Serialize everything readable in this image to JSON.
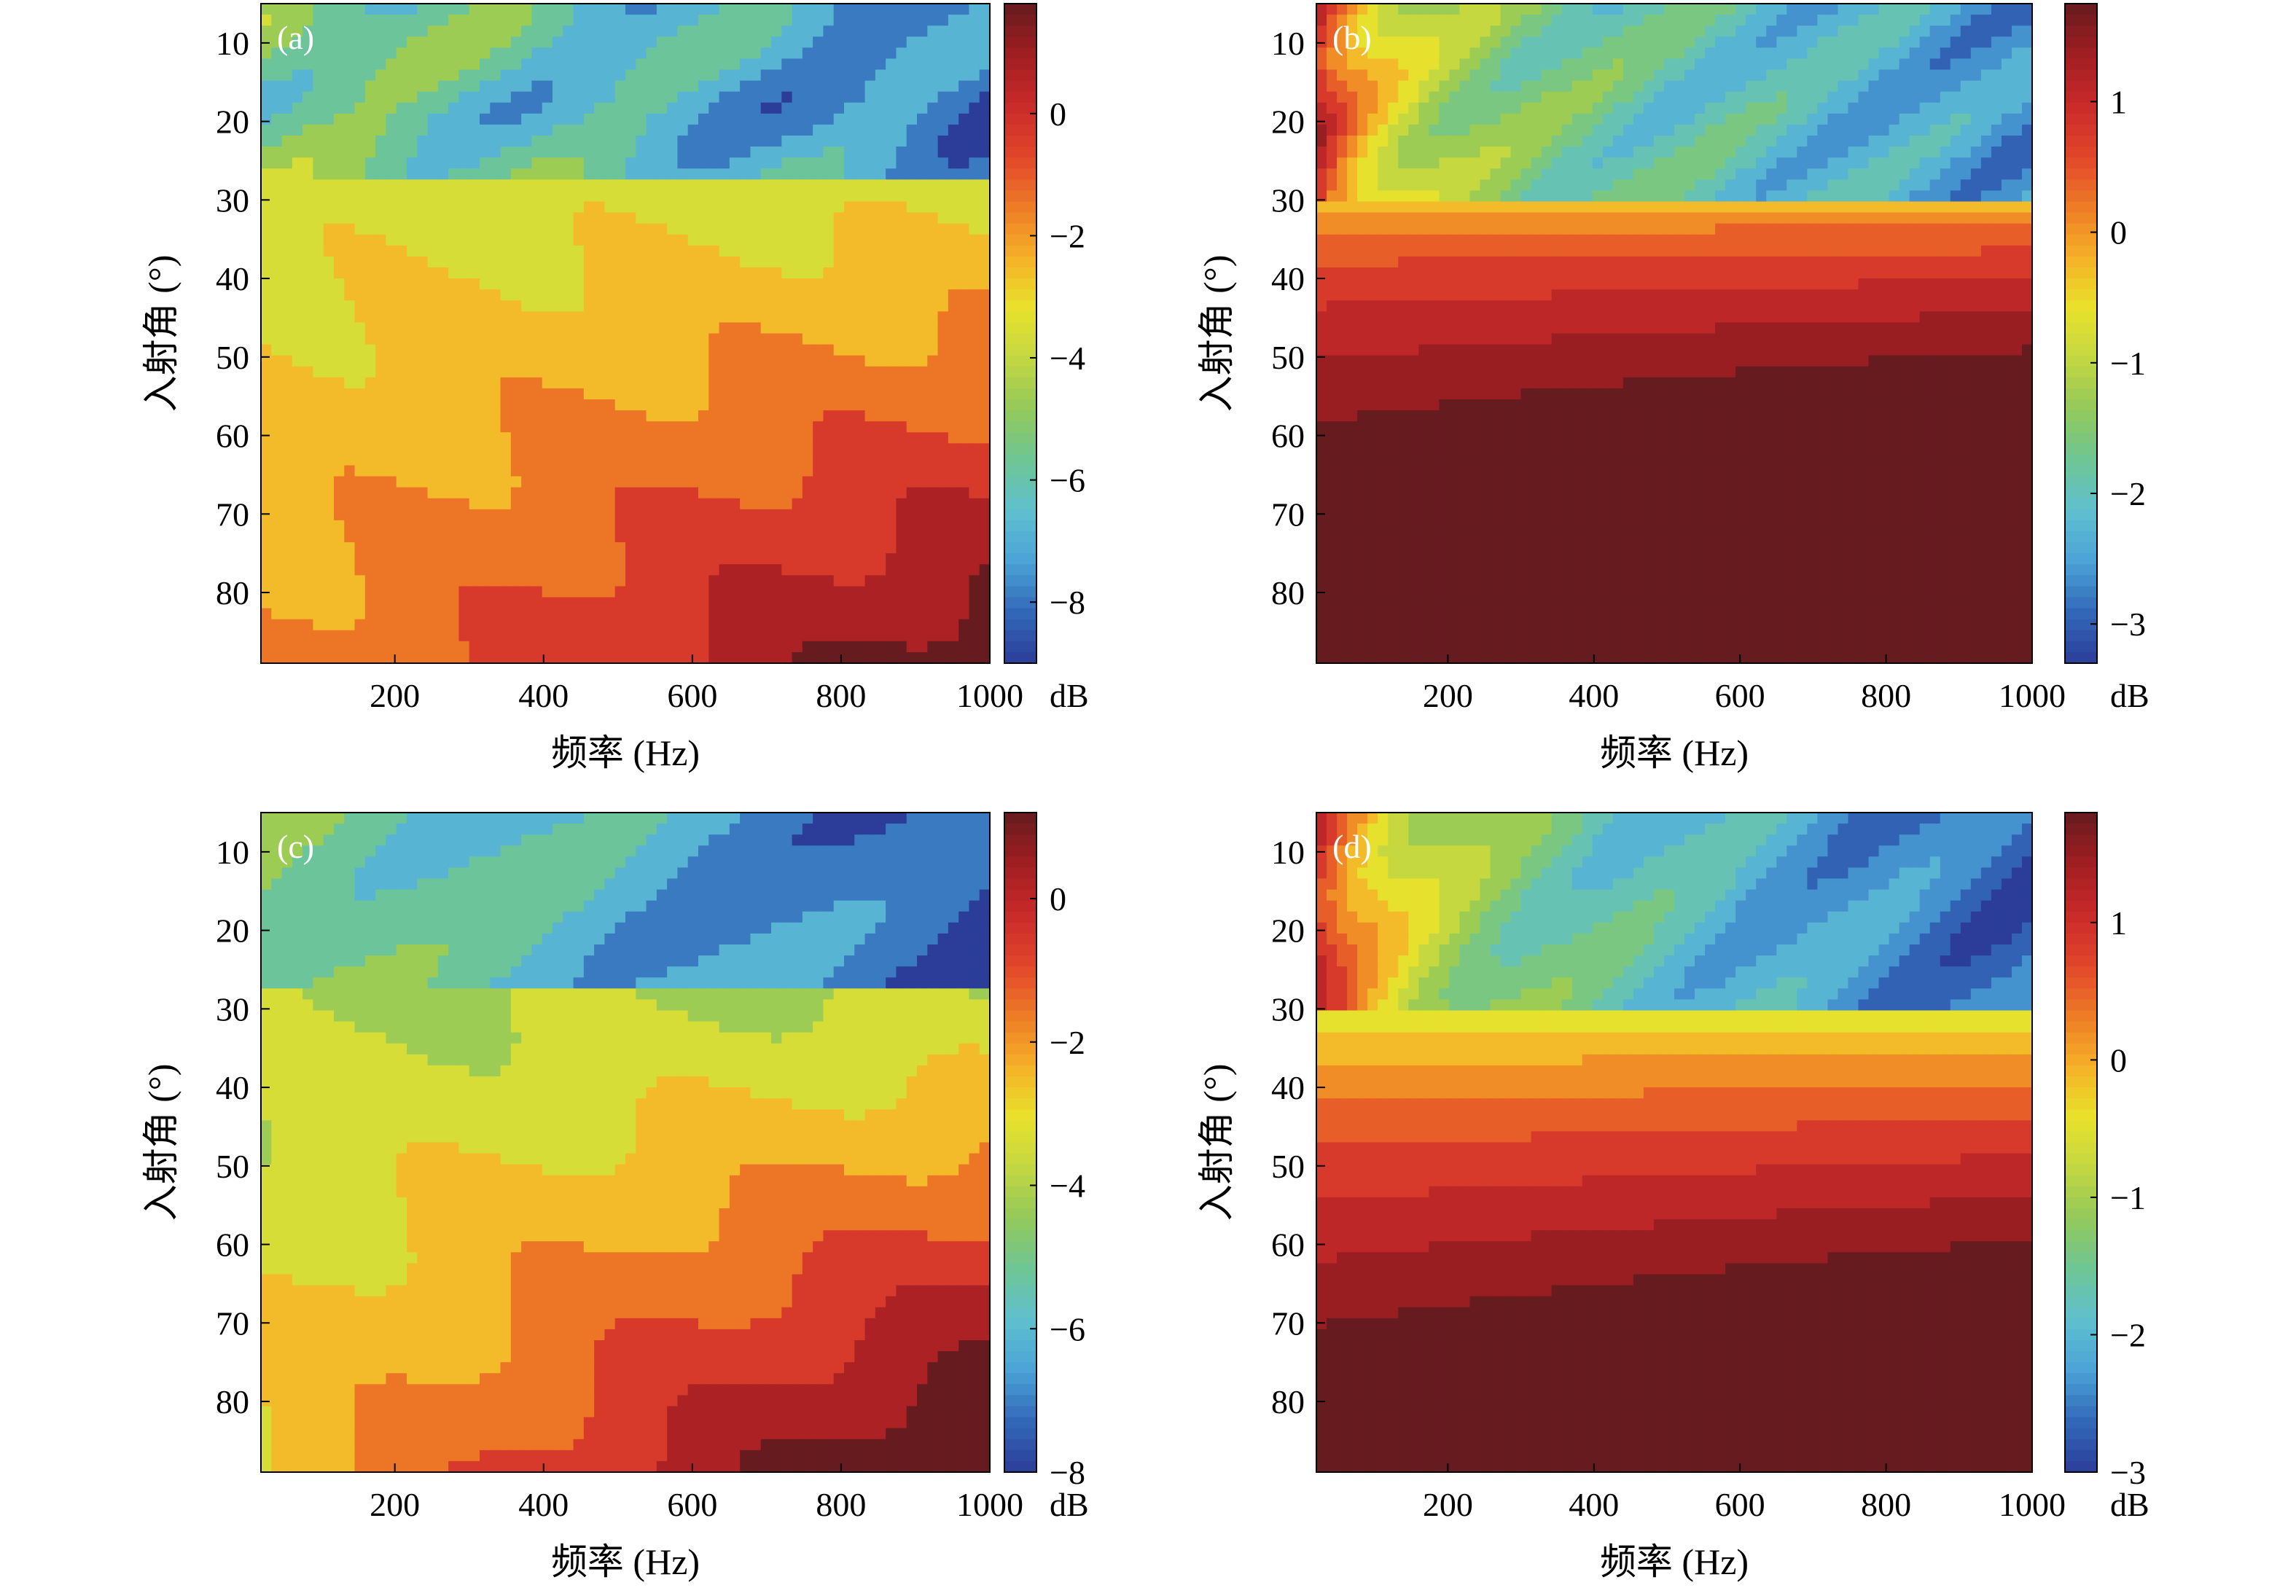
{
  "chart_data": [
    {
      "type": "heatmap",
      "tag": "(a)",
      "xlabel": "频率 (Hz)",
      "ylabel": "入射角 (°)",
      "xlim": [
        20,
        1000
      ],
      "ylim": [
        5,
        89
      ],
      "y_inverted": true,
      "xticks": [
        200,
        400,
        600,
        800,
        1000
      ],
      "yticks": [
        10,
        20,
        30,
        40,
        50,
        60,
        70,
        80
      ],
      "colorbar": {
        "unit": "dB",
        "range": [
          -9,
          1.8
        ],
        "ticks": [
          0,
          -2,
          -4,
          -6,
          -8
        ],
        "labels": [
          "0",
          "−2",
          "−4",
          "−6",
          "−8"
        ]
      },
      "contours": "dense"
    },
    {
      "type": "heatmap",
      "tag": "(b)",
      "xlabel": "频率 (Hz)",
      "ylabel": "入射角 (°)",
      "xlim": [
        20,
        1000
      ],
      "ylim": [
        5,
        89
      ],
      "y_inverted": true,
      "xticks": [
        200,
        400,
        600,
        800,
        1000
      ],
      "yticks": [
        10,
        20,
        30,
        40,
        50,
        60,
        70,
        80
      ],
      "colorbar": {
        "unit": "dB",
        "range": [
          -3.3,
          1.75
        ],
        "ticks": [
          1,
          0,
          -1,
          -2,
          -3
        ],
        "labels": [
          "1",
          "0",
          "−1",
          "−2",
          "−3"
        ]
      },
      "contours": "sparse"
    },
    {
      "type": "heatmap",
      "tag": "(c)",
      "xlabel": "频率 (Hz)",
      "ylabel": "入射角 (°)",
      "xlim": [
        20,
        1000
      ],
      "ylim": [
        5,
        89
      ],
      "y_inverted": true,
      "xticks": [
        200,
        400,
        600,
        800,
        1000
      ],
      "yticks": [
        10,
        20,
        30,
        40,
        50,
        60,
        70,
        80
      ],
      "colorbar": {
        "unit": "dB",
        "range": [
          -8,
          1.2
        ],
        "ticks": [
          0,
          -2,
          -4,
          -6,
          -8
        ],
        "labels": [
          "0",
          "−2",
          "−4",
          "−6",
          "−8"
        ]
      },
      "contours": "dense"
    },
    {
      "type": "heatmap",
      "tag": "(d)",
      "xlabel": "频率 (Hz)",
      "ylabel": "入射角 (°)",
      "xlim": [
        20,
        1000
      ],
      "ylim": [
        5,
        89
      ],
      "y_inverted": true,
      "xticks": [
        200,
        400,
        600,
        800,
        1000
      ],
      "yticks": [
        10,
        20,
        30,
        40,
        50,
        60,
        70,
        80
      ],
      "colorbar": {
        "unit": "dB",
        "range": [
          -3,
          1.8
        ],
        "ticks": [
          1,
          0,
          -1,
          -2,
          -3
        ],
        "labels": [
          "1",
          "0",
          "−1",
          "−2",
          "−3"
        ]
      },
      "contours": "sparse"
    }
  ],
  "colormap": [
    "#2b3d99",
    "#3268b8",
    "#4ba3d6",
    "#5fc0cf",
    "#6dc694",
    "#93c95a",
    "#c3d742",
    "#e9e22b",
    "#f5b128",
    "#ee7b26",
    "#e1452a",
    "#c92a2a",
    "#a01e22",
    "#661b1f"
  ]
}
